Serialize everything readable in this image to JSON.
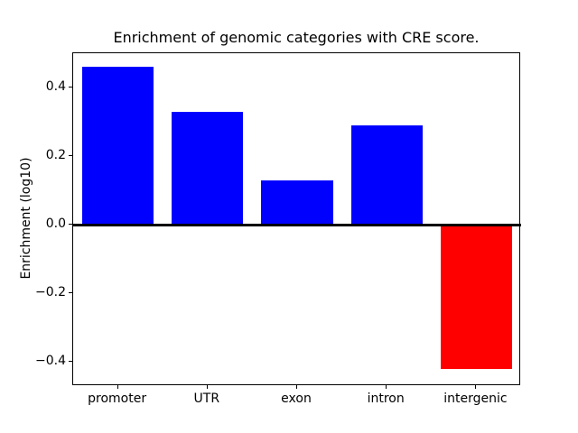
{
  "figure": {
    "title": "Enrichment of genomic categories with CRE score.",
    "background": "#ffffff"
  },
  "chart_data": {
    "type": "bar",
    "title": "Enrichment of genomic categories with CRE score.",
    "xlabel": "",
    "ylabel": "Enrichment (log10)",
    "categories": [
      "promoter",
      "UTR",
      "exon",
      "intron",
      "intergenic"
    ],
    "values": [
      0.46,
      0.33,
      0.13,
      0.29,
      -0.42
    ],
    "bar_colors": [
      "#0000ff",
      "#0000ff",
      "#0000ff",
      "#0000ff",
      "#ff0000"
    ],
    "positive_color": "#0000ff",
    "negative_color": "#ff0000",
    "yticks": [
      0.4,
      0.2,
      0.0,
      -0.2,
      -0.4
    ],
    "ytick_labels": [
      "0.4",
      "0.2",
      "0.0",
      "−0.2",
      "−0.4"
    ],
    "ylim": [
      -0.47,
      0.5
    ],
    "xlim": [
      -0.5,
      4.5
    ],
    "bar_width_fraction": 0.8,
    "grid": false,
    "legend": null,
    "zero_line": {
      "color": "#000000",
      "linewidth": 2
    },
    "axes_edge_color": "#000000"
  }
}
